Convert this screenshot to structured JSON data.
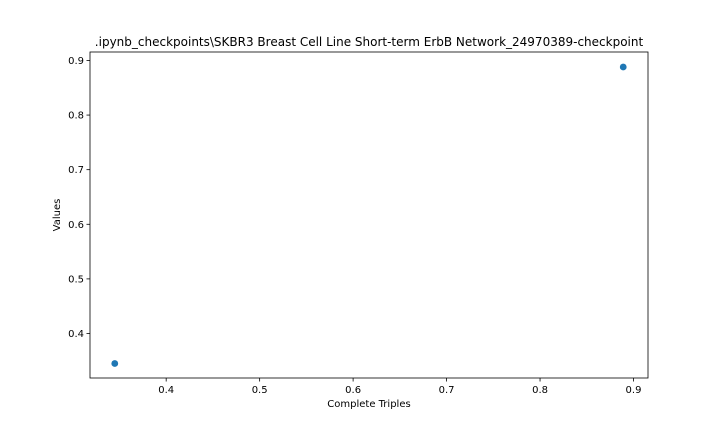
{
  "chart_data": {
    "type": "scatter",
    "title": ".ipynb_checkpoints\\SKBR3 Breast Cell Line Short-term ErbB Network_24970389-checkpoint",
    "xlabel": "Complete Triples",
    "ylabel": "Values",
    "xlim": [
      0.3185,
      0.9155
    ],
    "ylim": [
      0.3185,
      0.9155
    ],
    "xticks": [
      0.4,
      0.5,
      0.6,
      0.7,
      0.8,
      0.9
    ],
    "yticks": [
      0.4,
      0.5,
      0.6,
      0.7,
      0.8,
      0.9
    ],
    "xtick_labels": [
      "0.4",
      "0.5",
      "0.6",
      "0.7",
      "0.8",
      "0.9"
    ],
    "ytick_labels": [
      "0.4",
      "0.5",
      "0.6",
      "0.7",
      "0.8",
      "0.9"
    ],
    "grid": false,
    "legend": "none",
    "color": "#1f77b4",
    "points": [
      {
        "x": 0.345,
        "y": 0.345
      },
      {
        "x": 0.889,
        "y": 0.888
      }
    ]
  }
}
